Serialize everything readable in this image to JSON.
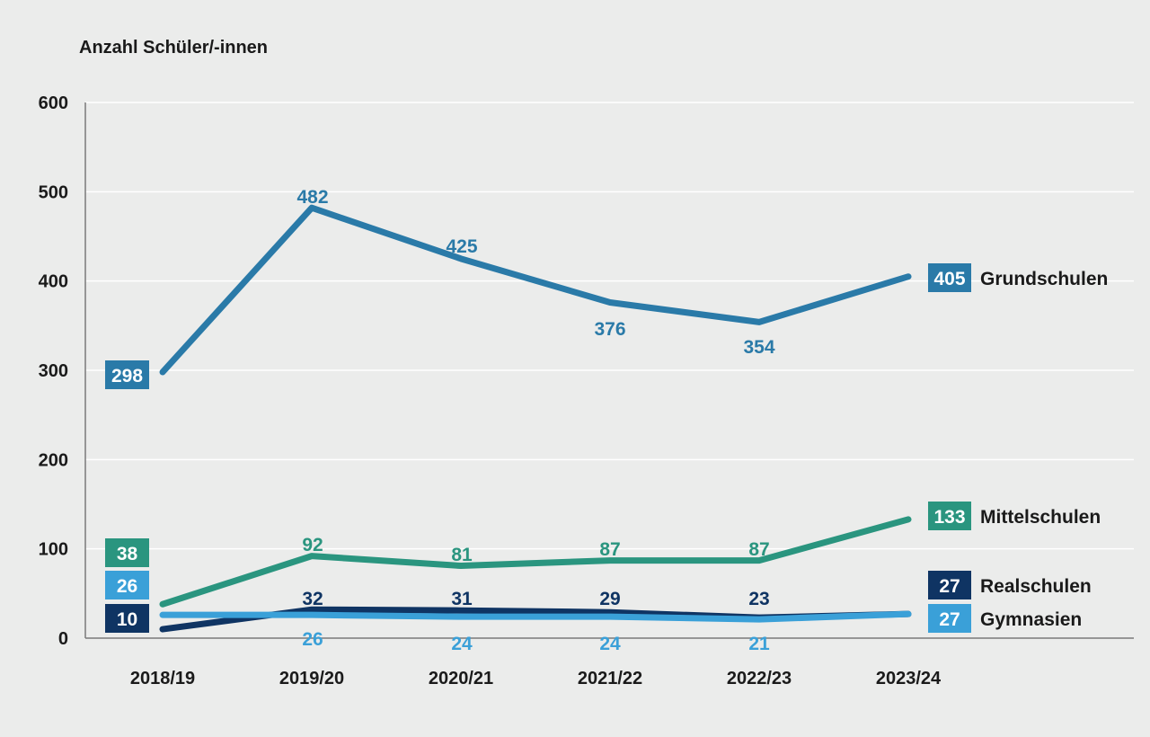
{
  "chart_data": {
    "type": "line",
    "ylabel": "Anzahl Schüler/-innen",
    "xlabel": "",
    "categories": [
      "2018/19",
      "2019/20",
      "2020/21",
      "2021/22",
      "2022/23",
      "2023/24"
    ],
    "ylim": [
      0,
      600
    ],
    "yticks": [
      0,
      100,
      200,
      300,
      400,
      500,
      600
    ],
    "grid": "horizontal",
    "series": [
      {
        "name": "Grundschulen",
        "color": "#2a7aa8",
        "values": [
          298,
          482,
          425,
          376,
          354,
          405
        ],
        "labels": [
          "298",
          "482",
          "425",
          "376",
          "354",
          "405"
        ]
      },
      {
        "name": "Mittelschulen",
        "color": "#2a957f",
        "values": [
          38,
          92,
          81,
          87,
          87,
          133
        ],
        "labels": [
          "38",
          "92",
          "81",
          "87",
          "87",
          "133"
        ]
      },
      {
        "name": "Realschulen",
        "color": "#0f3463",
        "values": [
          10,
          32,
          31,
          29,
          23,
          27
        ],
        "labels": [
          "10",
          "32",
          "31",
          "29",
          "23",
          "27"
        ]
      },
      {
        "name": "Gymnasien",
        "color": "#3aa0d8",
        "values": [
          26,
          26,
          24,
          24,
          21,
          27
        ],
        "labels": [
          "26",
          "26",
          "24",
          "24",
          "21",
          "27"
        ]
      }
    ]
  }
}
